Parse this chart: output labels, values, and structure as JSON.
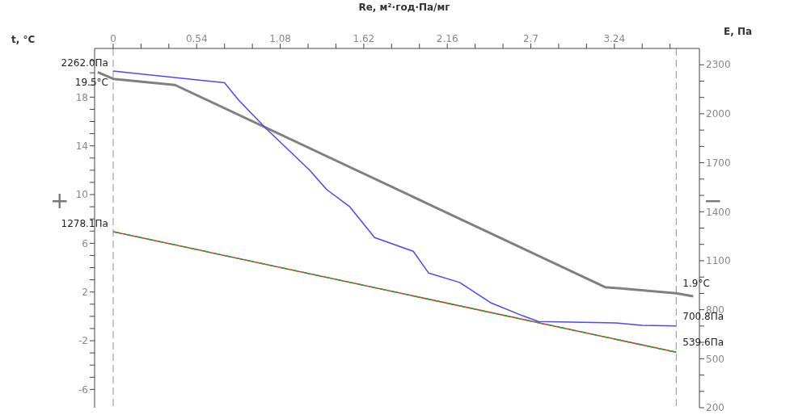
{
  "chart_data": {
    "type": "line",
    "xlabel": "Re, м²·год·Па/мг",
    "ylabel": "t, °C",
    "y2label": "E, Па",
    "xlim": [
      -0.12,
      3.79
    ],
    "xticks": [
      0,
      {
        "value": 0.18,
        "label": null
      },
      {
        "value": 0.36,
        "label": null
      },
      0.54,
      {
        "value": 0.72,
        "label": null
      },
      {
        "value": 0.9,
        "label": null
      },
      1.08,
      {
        "value": 1.26,
        "label": null
      },
      {
        "value": 1.44,
        "label": null
      },
      1.62,
      {
        "value": 1.8,
        "label": null
      },
      {
        "value": 1.98,
        "label": null
      },
      2.16,
      {
        "value": 2.34,
        "label": null
      },
      {
        "value": 2.52,
        "label": null
      },
      2.7,
      {
        "value": 2.88,
        "label": null
      },
      {
        "value": 3.06,
        "label": null
      },
      3.24,
      {
        "value": 3.42,
        "label": null
      },
      {
        "value": 3.6,
        "label": null
      }
    ],
    "ylim": [
      -7.5,
      22
    ],
    "yticks": [
      -6,
      {
        "value": -5,
        "label": null
      },
      {
        "value": -4,
        "label": null
      },
      {
        "value": -3,
        "label": null
      },
      -2,
      {
        "value": -1,
        "label": null
      },
      {
        "value": 0,
        "label": null
      },
      {
        "value": 1,
        "label": null
      },
      2,
      {
        "value": 3,
        "label": null
      },
      {
        "value": 4,
        "label": null
      },
      {
        "value": 5,
        "label": null
      },
      6,
      {
        "value": 7,
        "label": null
      },
      {
        "value": 8,
        "label": null
      },
      {
        "value": 9,
        "label": null
      },
      10,
      {
        "value": 11,
        "label": null
      },
      {
        "value": 12,
        "label": null
      },
      {
        "value": 13,
        "label": null
      },
      14,
      {
        "value": 15,
        "label": null
      },
      {
        "value": 16,
        "label": null
      },
      {
        "value": 17,
        "label": null
      },
      18,
      {
        "value": 19,
        "label": null
      },
      {
        "value": 20,
        "label": null
      },
      {
        "value": 21,
        "label": null
      }
    ],
    "y2lim": [
      200,
      2400
    ],
    "y2ticks": [
      200,
      {
        "value": 300,
        "label": null
      },
      {
        "value": 400,
        "label": null
      },
      500,
      {
        "value": 600,
        "label": null
      },
      {
        "value": 700,
        "label": null
      },
      800,
      {
        "value": 900,
        "label": null
      },
      {
        "value": 1000,
        "label": null
      },
      1100,
      {
        "value": 1200,
        "label": null
      },
      {
        "value": 1300,
        "label": null
      },
      1400,
      {
        "value": 1500,
        "label": null
      },
      {
        "value": 1600,
        "label": null
      },
      1700,
      {
        "value": 1800,
        "label": null
      },
      {
        "value": 1900,
        "label": null
      },
      2000,
      {
        "value": 2100,
        "label": null
      },
      {
        "value": 2200,
        "label": null
      },
      2300
    ],
    "annotations": [
      "+",
      "−"
    ],
    "ref_lines": [
      {
        "axis": "x",
        "value": 0,
        "color": "#909090",
        "line_style": "dashed"
      },
      {
        "axis": "x",
        "value": 3.64,
        "color": "#909090",
        "line_style": "dashed"
      }
    ],
    "series": [
      {
        "color": "#808080",
        "line_style": "solid",
        "x": [
          -0.1,
          0,
          0.4,
          3.18,
          3.64,
          3.75
        ],
        "values": [
          20.05,
          19.5,
          19.0,
          2.4,
          1.9,
          1.65
        ],
        "value_labels": [
          null,
          "19.5°C",
          null,
          null,
          "1.9°C",
          null
        ]
      },
      {
        "color": "#4848ff",
        "line_style": "solid",
        "axis": "y2",
        "x": [
          0,
          0.72,
          0.81,
          0.99,
          1.27,
          1.38,
          1.53,
          1.69,
          1.94,
          2.04,
          2.24,
          2.44,
          2.65,
          2.75,
          3.25,
          3.42,
          3.64
        ],
        "values": [
          2262,
          2190,
          2085,
          1908,
          1655,
          1536,
          1430,
          1242,
          1158,
          1024,
          967,
          843,
          762,
          728,
          719,
          704,
          700.8
        ],
        "value_labels": [
          "2262.0Па",
          null,
          null,
          null,
          null,
          null,
          null,
          null,
          null,
          null,
          null,
          null,
          null,
          null,
          null,
          null,
          "700.8Па"
        ]
      },
      {
        "color": "#e03030",
        "line_style": "solid",
        "axis": "y2",
        "x": [
          0,
          3.64
        ],
        "values": [
          1278.1,
          539.6
        ]
      },
      {
        "color": "#30a030",
        "line_style": "dashed",
        "axis": "y2",
        "x": [
          0,
          3.64
        ],
        "values": [
          1278.1,
          539.6
        ],
        "value_labels": [
          "1278.1Па",
          "539.6Па"
        ]
      }
    ]
  }
}
